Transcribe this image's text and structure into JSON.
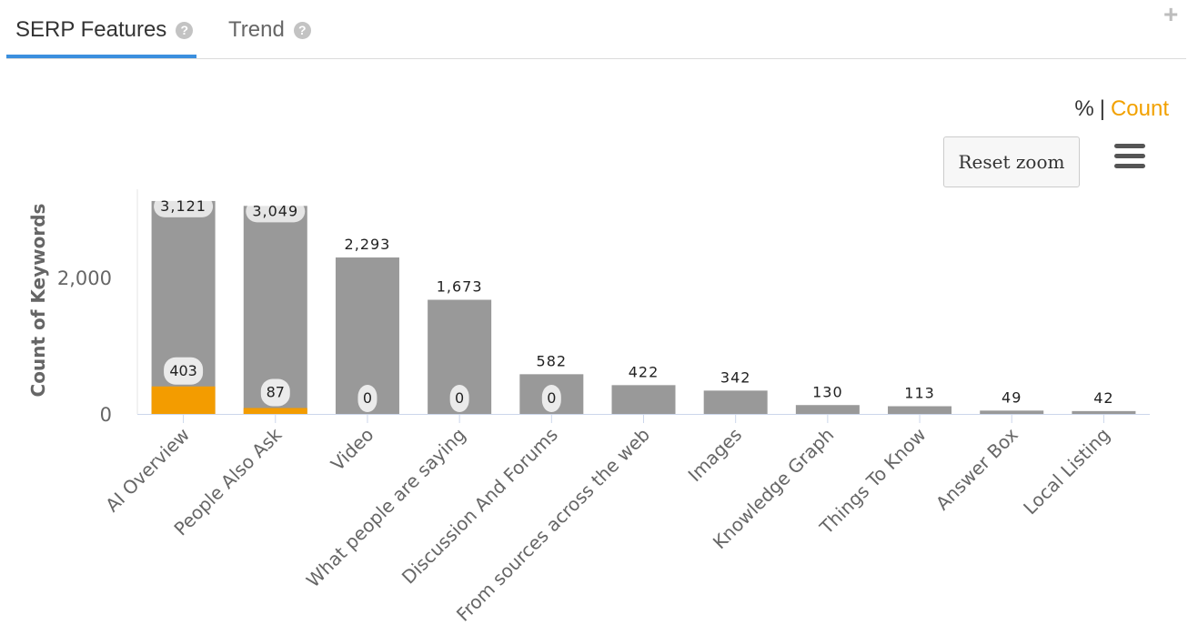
{
  "tabs": [
    {
      "label": "SERP Features",
      "active": true
    },
    {
      "label": "Trend",
      "active": false
    }
  ],
  "help_glyph": "?",
  "add_glyph": "+",
  "toggle": {
    "percent_label": "%",
    "separator": "|",
    "count_label": "Count",
    "selected": "Count"
  },
  "reset_zoom_label": "Reset zoom",
  "colors": {
    "total": "#999999",
    "highlight": "#f39c00",
    "accent": "#3b8fde",
    "count_active": "#f2a100"
  },
  "chart_data": {
    "type": "bar",
    "stacked_overlay": true,
    "ylabel": "Count of Keywords",
    "xlabel": "",
    "ylim": [
      0,
      3200
    ],
    "yticks": [
      0,
      2000
    ],
    "grid": false,
    "categories": [
      "AI Overview",
      "People Also Ask",
      "Video",
      "What people are saying",
      "Discussion And Forums",
      "From sources across the web",
      "Images",
      "Knowledge Graph",
      "Things To Know",
      "Answer Box",
      "Local Listing"
    ],
    "series": [
      {
        "values": [
          3121,
          3049,
          2293,
          1673,
          582,
          422,
          342,
          130,
          113,
          49,
          42
        ]
      },
      {
        "values": [
          403,
          87,
          0,
          0,
          0,
          null,
          null,
          null,
          null,
          null,
          null
        ]
      }
    ],
    "value_labels_total": [
      "3,121",
      "3,049",
      "2,293",
      "1,673",
      "582",
      "422",
      "342",
      "130",
      "113",
      "49",
      "42"
    ],
    "value_labels_highlight": [
      "403",
      "87",
      "0",
      "0",
      "0",
      null,
      null,
      null,
      null,
      null,
      null
    ],
    "ytick_labels": [
      "0",
      "2,000"
    ]
  }
}
